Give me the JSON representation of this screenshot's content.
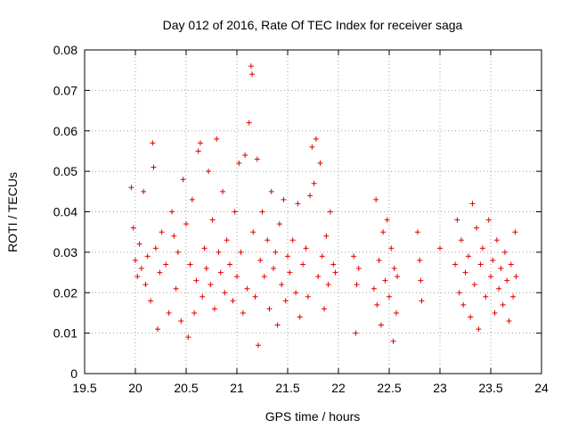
{
  "chart_data": {
    "type": "scatter",
    "title": "Day 012 of 2016, Rate Of TEC Index for receiver saga",
    "xlabel": "GPS time / hours",
    "ylabel": "ROTI / TECUs",
    "xlim": [
      19.5,
      24
    ],
    "ylim": [
      0,
      0.08
    ],
    "xticks": [
      "19.5",
      "20",
      "20.5",
      "21",
      "21.5",
      "22",
      "22.5",
      "23",
      "23.5",
      "24"
    ],
    "yticks": [
      "0",
      "0.01",
      "0.02",
      "0.03",
      "0.04",
      "0.05",
      "0.06",
      "0.07",
      "0.08"
    ],
    "grid": true,
    "marker": "plus",
    "color": "#e00000",
    "series": [
      {
        "name": "ROTI",
        "points": [
          [
            19.96,
            0.046
          ],
          [
            19.98,
            0.036
          ],
          [
            20.0,
            0.028
          ],
          [
            20.02,
            0.024
          ],
          [
            20.04,
            0.032
          ],
          [
            20.06,
            0.026
          ],
          [
            20.08,
            0.045
          ],
          [
            20.1,
            0.022
          ],
          [
            20.12,
            0.029
          ],
          [
            20.15,
            0.018
          ],
          [
            20.17,
            0.057
          ],
          [
            20.18,
            0.051
          ],
          [
            20.2,
            0.031
          ],
          [
            20.22,
            0.011
          ],
          [
            20.24,
            0.025
          ],
          [
            20.26,
            0.035
          ],
          [
            20.3,
            0.027
          ],
          [
            20.33,
            0.015
          ],
          [
            20.36,
            0.04
          ],
          [
            20.38,
            0.034
          ],
          [
            20.4,
            0.021
          ],
          [
            20.42,
            0.03
          ],
          [
            20.45,
            0.013
          ],
          [
            20.47,
            0.048
          ],
          [
            20.5,
            0.037
          ],
          [
            20.52,
            0.009
          ],
          [
            20.54,
            0.027
          ],
          [
            20.56,
            0.043
          ],
          [
            20.58,
            0.015
          ],
          [
            20.6,
            0.023
          ],
          [
            20.62,
            0.055
          ],
          [
            20.64,
            0.057
          ],
          [
            20.66,
            0.019
          ],
          [
            20.68,
            0.031
          ],
          [
            20.7,
            0.026
          ],
          [
            20.72,
            0.05
          ],
          [
            20.74,
            0.022
          ],
          [
            20.76,
            0.038
          ],
          [
            20.78,
            0.016
          ],
          [
            20.8,
            0.058
          ],
          [
            20.82,
            0.03
          ],
          [
            20.84,
            0.025
          ],
          [
            20.86,
            0.045
          ],
          [
            20.88,
            0.02
          ],
          [
            20.9,
            0.033
          ],
          [
            20.93,
            0.027
          ],
          [
            20.96,
            0.018
          ],
          [
            20.98,
            0.04
          ],
          [
            21.0,
            0.024
          ],
          [
            21.02,
            0.052
          ],
          [
            21.04,
            0.03
          ],
          [
            21.06,
            0.015
          ],
          [
            21.08,
            0.054
          ],
          [
            21.1,
            0.021
          ],
          [
            21.12,
            0.062
          ],
          [
            21.14,
            0.076
          ],
          [
            21.15,
            0.074
          ],
          [
            21.16,
            0.035
          ],
          [
            21.18,
            0.019
          ],
          [
            21.2,
            0.053
          ],
          [
            21.21,
            0.007
          ],
          [
            21.23,
            0.028
          ],
          [
            21.25,
            0.04
          ],
          [
            21.27,
            0.024
          ],
          [
            21.3,
            0.033
          ],
          [
            21.32,
            0.016
          ],
          [
            21.34,
            0.045
          ],
          [
            21.36,
            0.026
          ],
          [
            21.38,
            0.03
          ],
          [
            21.4,
            0.012
          ],
          [
            21.42,
            0.037
          ],
          [
            21.44,
            0.022
          ],
          [
            21.46,
            0.043
          ],
          [
            21.48,
            0.018
          ],
          [
            21.5,
            0.029
          ],
          [
            21.52,
            0.025
          ],
          [
            21.55,
            0.033
          ],
          [
            21.58,
            0.02
          ],
          [
            21.6,
            0.042
          ],
          [
            21.62,
            0.014
          ],
          [
            21.65,
            0.027
          ],
          [
            21.68,
            0.031
          ],
          [
            21.7,
            0.019
          ],
          [
            21.72,
            0.044
          ],
          [
            21.74,
            0.056
          ],
          [
            21.76,
            0.047
          ],
          [
            21.78,
            0.058
          ],
          [
            21.8,
            0.024
          ],
          [
            21.82,
            0.052
          ],
          [
            21.84,
            0.029
          ],
          [
            21.86,
            0.016
          ],
          [
            21.88,
            0.034
          ],
          [
            21.9,
            0.022
          ],
          [
            21.92,
            0.04
          ],
          [
            21.95,
            0.027
          ],
          [
            21.97,
            0.025
          ],
          [
            22.15,
            0.029
          ],
          [
            22.17,
            0.01
          ],
          [
            22.18,
            0.022
          ],
          [
            22.2,
            0.026
          ],
          [
            22.35,
            0.021
          ],
          [
            22.37,
            0.043
          ],
          [
            22.38,
            0.017
          ],
          [
            22.4,
            0.028
          ],
          [
            22.42,
            0.012
          ],
          [
            22.44,
            0.035
          ],
          [
            22.46,
            0.023
          ],
          [
            22.48,
            0.038
          ],
          [
            22.5,
            0.019
          ],
          [
            22.52,
            0.031
          ],
          [
            22.54,
            0.008
          ],
          [
            22.55,
            0.026
          ],
          [
            22.57,
            0.015
          ],
          [
            22.58,
            0.024
          ],
          [
            22.78,
            0.035
          ],
          [
            22.8,
            0.028
          ],
          [
            22.81,
            0.023
          ],
          [
            22.82,
            0.018
          ],
          [
            23.0,
            0.031
          ],
          [
            23.15,
            0.027
          ],
          [
            23.17,
            0.038
          ],
          [
            23.19,
            0.02
          ],
          [
            23.21,
            0.033
          ],
          [
            23.23,
            0.017
          ],
          [
            23.25,
            0.025
          ],
          [
            23.28,
            0.029
          ],
          [
            23.3,
            0.014
          ],
          [
            23.32,
            0.042
          ],
          [
            23.34,
            0.022
          ],
          [
            23.36,
            0.036
          ],
          [
            23.38,
            0.011
          ],
          [
            23.4,
            0.027
          ],
          [
            23.42,
            0.031
          ],
          [
            23.45,
            0.019
          ],
          [
            23.48,
            0.038
          ],
          [
            23.5,
            0.024
          ],
          [
            23.52,
            0.028
          ],
          [
            23.54,
            0.015
          ],
          [
            23.56,
            0.033
          ],
          [
            23.58,
            0.021
          ],
          [
            23.6,
            0.026
          ],
          [
            23.62,
            0.017
          ],
          [
            23.64,
            0.03
          ],
          [
            23.66,
            0.023
          ],
          [
            23.68,
            0.013
          ],
          [
            23.7,
            0.027
          ],
          [
            23.72,
            0.019
          ],
          [
            23.74,
            0.035
          ],
          [
            23.75,
            0.024
          ]
        ]
      }
    ]
  }
}
